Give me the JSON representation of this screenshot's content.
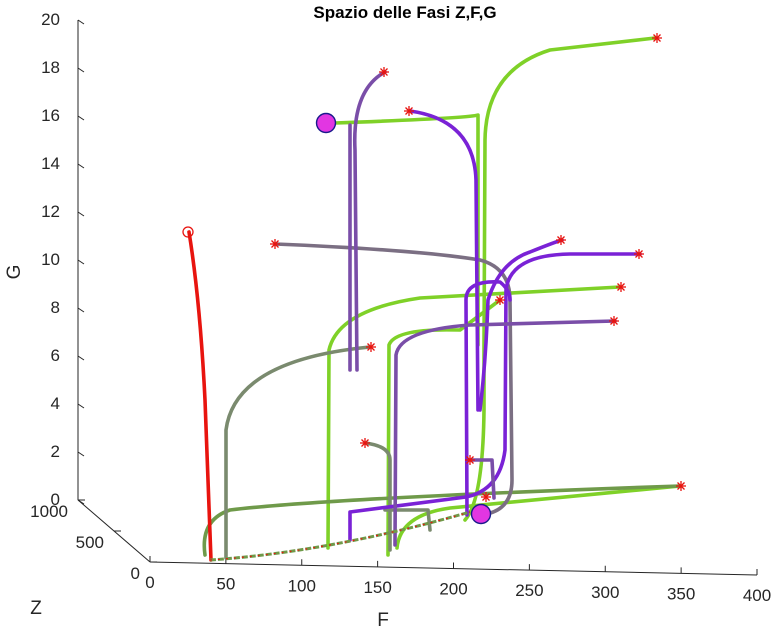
{
  "chart_data": {
    "type": "line",
    "title": "Spazio delle Fasi Z,F,G",
    "xlabel": "F",
    "ylabel": "G",
    "zlabel": "Z",
    "xlim": [
      0,
      400
    ],
    "ylim": [
      0,
      20
    ],
    "zlim": [
      0,
      1000
    ],
    "xticks": [
      "0",
      "50",
      "100",
      "150",
      "200",
      "250",
      "300",
      "350",
      "400"
    ],
    "yticks": [
      "0",
      "2",
      "4",
      "6",
      "8",
      "10",
      "12",
      "14",
      "16",
      "18",
      "20"
    ],
    "zticks": [
      "0",
      "500",
      "1000"
    ],
    "grid": false,
    "view": "3d",
    "markers": {
      "start_symbol": "red-asterisk",
      "initial_point": "red-circle",
      "equilibria": "magenta-filled-circle"
    },
    "colors": {
      "red": "#e8140f",
      "green": "#7fd128",
      "olive": "#6f9a4a",
      "purple": "#7a22d6",
      "violet": "#7a4ea8",
      "grey": "#7b6f83",
      "greygreen": "#7a8a6e",
      "marker": "#e8140f",
      "equilibrium": "#e236e2"
    }
  }
}
